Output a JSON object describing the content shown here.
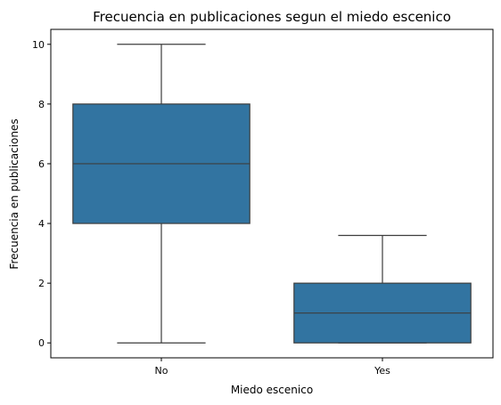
{
  "chart_data": {
    "type": "boxplot",
    "title": "Frecuencia en publicaciones segun el miedo escenico",
    "xlabel": "Miedo escenico",
    "ylabel": "Frecuencia en publicaciones",
    "categories": [
      "No",
      "Yes"
    ],
    "boxes": [
      {
        "category": "No",
        "whisker_low": 0,
        "q1": 4,
        "median": 6,
        "q3": 8,
        "whisker_high": 10
      },
      {
        "category": "Yes",
        "whisker_low": 0,
        "q1": 0,
        "median": 1,
        "q3": 2,
        "whisker_high": 3.6
      }
    ],
    "yticks": [
      0,
      2,
      4,
      6,
      8,
      10
    ],
    "ytick_labels": [
      "0",
      "2",
      "4",
      "6",
      "8",
      "10"
    ],
    "ylim": [
      -0.5,
      10.5
    ],
    "grid": false,
    "colors": {
      "box_fill": "#3274a1",
      "line": "#3d3d3d"
    }
  }
}
